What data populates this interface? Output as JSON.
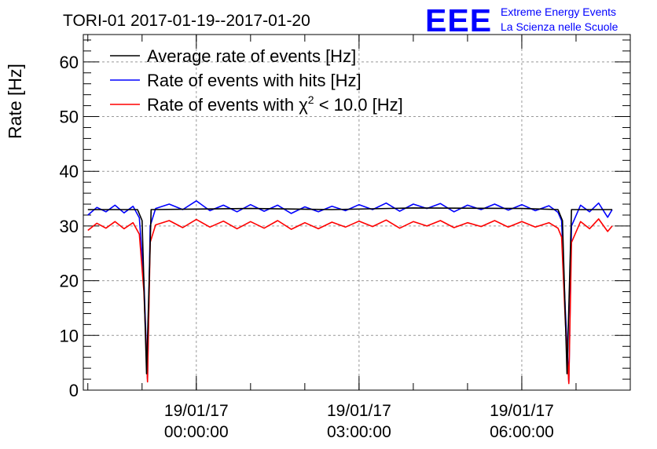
{
  "header": {
    "title": "TORI-01 2017-01-19--2017-01-20",
    "logo_text": "EEE",
    "logo_line1": "Extreme Energy Events",
    "logo_line2": "La Scienza nelle Scuole"
  },
  "colors": {
    "average": "#000000",
    "hits": "#0000ff",
    "chi2": "#ff0000",
    "logo": "#0000ff",
    "grid": "#999999"
  },
  "chart_data": {
    "type": "line",
    "title": "TORI-01 2017-01-19--2017-01-20",
    "ylabel": "Rate [Hz]",
    "xlabel": "",
    "ylim": [
      0,
      65
    ],
    "xlim": [
      "2017-01-18T21:55:00",
      "2017-01-19T08:00:00"
    ],
    "yticks": [
      0,
      10,
      20,
      30,
      40,
      50,
      60
    ],
    "xticks": [
      {
        "at": "2017-01-19T00:00:00",
        "date": "19/01/17",
        "time": "00:00:00"
      },
      {
        "at": "2017-01-19T03:00:00",
        "date": "19/01/17",
        "time": "03:00:00"
      },
      {
        "at": "2017-01-19T06:00:00",
        "date": "19/01/17",
        "time": "06:00:00"
      }
    ],
    "grid": true,
    "legend_position": "top-left",
    "series": [
      {
        "name": "Average rate of events [Hz]",
        "legend_main": "Average rate of events [Hz]",
        "color": "#000000",
        "points": [
          [
            "2017-01-18T22:00:00",
            33.0
          ],
          [
            "2017-01-18T22:55:00",
            33.0
          ],
          [
            "2017-01-18T23:00:00",
            31.0
          ],
          [
            "2017-01-18T23:05:00",
            3.0
          ],
          [
            "2017-01-18T23:10:00",
            33.0
          ],
          [
            "2017-01-19T01:00:00",
            33.2
          ],
          [
            "2017-01-19T02:30:00",
            33.0
          ],
          [
            "2017-01-19T04:00:00",
            33.3
          ],
          [
            "2017-01-19T06:00:00",
            33.2
          ],
          [
            "2017-01-19T06:40:00",
            33.0
          ],
          [
            "2017-01-19T06:45:00",
            31.0
          ],
          [
            "2017-01-19T06:50:00",
            3.0
          ],
          [
            "2017-01-19T06:55:00",
            33.0
          ],
          [
            "2017-01-19T07:40:00",
            33.0
          ]
        ]
      },
      {
        "name": "Rate of events with hits [Hz]",
        "legend_main": "Rate of events with hits [Hz]",
        "color": "#0000ff",
        "points": [
          [
            "2017-01-18T22:00:00",
            32.0
          ],
          [
            "2017-01-18T22:10:00",
            33.4
          ],
          [
            "2017-01-18T22:20:00",
            32.6
          ],
          [
            "2017-01-18T22:30:00",
            33.8
          ],
          [
            "2017-01-18T22:40:00",
            32.4
          ],
          [
            "2017-01-18T22:50:00",
            33.6
          ],
          [
            "2017-01-18T22:57:00",
            31.5
          ],
          [
            "2017-01-18T23:02:00",
            20.0
          ],
          [
            "2017-01-18T23:06:00",
            2.0
          ],
          [
            "2017-01-18T23:09:00",
            30.0
          ],
          [
            "2017-01-18T23:15:00",
            33.2
          ],
          [
            "2017-01-18T23:30:00",
            34.0
          ],
          [
            "2017-01-18T23:45:00",
            33.0
          ],
          [
            "2017-01-19T00:00:00",
            34.6
          ],
          [
            "2017-01-19T00:15:00",
            32.8
          ],
          [
            "2017-01-19T00:30:00",
            33.8
          ],
          [
            "2017-01-19T00:45:00",
            32.6
          ],
          [
            "2017-01-19T01:00:00",
            33.9
          ],
          [
            "2017-01-19T01:15:00",
            32.7
          ],
          [
            "2017-01-19T01:30:00",
            33.8
          ],
          [
            "2017-01-19T01:45:00",
            32.3
          ],
          [
            "2017-01-19T02:00:00",
            33.5
          ],
          [
            "2017-01-19T02:15:00",
            32.6
          ],
          [
            "2017-01-19T02:30:00",
            33.6
          ],
          [
            "2017-01-19T02:45:00",
            32.8
          ],
          [
            "2017-01-19T03:00:00",
            33.9
          ],
          [
            "2017-01-19T03:15:00",
            33.0
          ],
          [
            "2017-01-19T03:30:00",
            34.2
          ],
          [
            "2017-01-19T03:45:00",
            32.7
          ],
          [
            "2017-01-19T04:00:00",
            34.0
          ],
          [
            "2017-01-19T04:15:00",
            33.2
          ],
          [
            "2017-01-19T04:30:00",
            34.1
          ],
          [
            "2017-01-19T04:45:00",
            32.6
          ],
          [
            "2017-01-19T05:00:00",
            33.8
          ],
          [
            "2017-01-19T05:15:00",
            33.0
          ],
          [
            "2017-01-19T05:30:00",
            34.0
          ],
          [
            "2017-01-19T05:45:00",
            32.9
          ],
          [
            "2017-01-19T06:00:00",
            33.9
          ],
          [
            "2017-01-19T06:15:00",
            32.8
          ],
          [
            "2017-01-19T06:30:00",
            33.7
          ],
          [
            "2017-01-19T06:40:00",
            32.5
          ],
          [
            "2017-01-19T06:44:00",
            31.0
          ],
          [
            "2017-01-19T06:48:00",
            15.0
          ],
          [
            "2017-01-19T06:52:00",
            1.5
          ],
          [
            "2017-01-19T06:55:00",
            30.0
          ],
          [
            "2017-01-19T07:05:00",
            33.8
          ],
          [
            "2017-01-19T07:15:00",
            32.6
          ],
          [
            "2017-01-19T07:25:00",
            34.2
          ],
          [
            "2017-01-19T07:35:00",
            31.6
          ],
          [
            "2017-01-19T07:40:00",
            33.0
          ]
        ]
      },
      {
        "name": "Rate of events with χ2 < 10.0 [Hz]",
        "legend_main": "Rate of events with ",
        "legend_symbol": "χ",
        "legend_sup": "2",
        "legend_rest": " < 10.0 [Hz]",
        "color": "#ff0000",
        "points": [
          [
            "2017-01-18T22:00:00",
            29.2
          ],
          [
            "2017-01-18T22:10:00",
            30.5
          ],
          [
            "2017-01-18T22:20:00",
            29.6
          ],
          [
            "2017-01-18T22:30:00",
            30.8
          ],
          [
            "2017-01-18T22:40:00",
            29.5
          ],
          [
            "2017-01-18T22:50:00",
            30.6
          ],
          [
            "2017-01-18T22:57:00",
            28.5
          ],
          [
            "2017-01-18T23:02:00",
            18.0
          ],
          [
            "2017-01-18T23:06:00",
            1.5
          ],
          [
            "2017-01-18T23:09:00",
            27.0
          ],
          [
            "2017-01-18T23:15:00",
            30.2
          ],
          [
            "2017-01-18T23:30:00",
            31.0
          ],
          [
            "2017-01-18T23:45:00",
            29.7
          ],
          [
            "2017-01-19T00:00:00",
            31.2
          ],
          [
            "2017-01-19T00:15:00",
            29.8
          ],
          [
            "2017-01-19T00:30:00",
            30.9
          ],
          [
            "2017-01-19T00:45:00",
            29.5
          ],
          [
            "2017-01-19T01:00:00",
            30.8
          ],
          [
            "2017-01-19T01:15:00",
            29.6
          ],
          [
            "2017-01-19T01:30:00",
            31.0
          ],
          [
            "2017-01-19T01:45:00",
            29.4
          ],
          [
            "2017-01-19T02:00:00",
            30.6
          ],
          [
            "2017-01-19T02:15:00",
            29.5
          ],
          [
            "2017-01-19T02:30:00",
            30.7
          ],
          [
            "2017-01-19T02:45:00",
            29.8
          ],
          [
            "2017-01-19T03:00:00",
            30.9
          ],
          [
            "2017-01-19T03:15:00",
            29.9
          ],
          [
            "2017-01-19T03:30:00",
            31.1
          ],
          [
            "2017-01-19T03:45:00",
            29.6
          ],
          [
            "2017-01-19T04:00:00",
            30.8
          ],
          [
            "2017-01-19T04:15:00",
            30.0
          ],
          [
            "2017-01-19T04:30:00",
            31.0
          ],
          [
            "2017-01-19T04:45:00",
            29.7
          ],
          [
            "2017-01-19T05:00:00",
            30.6
          ],
          [
            "2017-01-19T05:15:00",
            29.9
          ],
          [
            "2017-01-19T05:30:00",
            31.0
          ],
          [
            "2017-01-19T05:45:00",
            29.8
          ],
          [
            "2017-01-19T06:00:00",
            30.8
          ],
          [
            "2017-01-19T06:15:00",
            29.8
          ],
          [
            "2017-01-19T06:30:00",
            30.6
          ],
          [
            "2017-01-19T06:40:00",
            29.6
          ],
          [
            "2017-01-19T06:44:00",
            28.0
          ],
          [
            "2017-01-19T06:48:00",
            13.0
          ],
          [
            "2017-01-19T06:52:00",
            1.2
          ],
          [
            "2017-01-19T06:55:00",
            27.0
          ],
          [
            "2017-01-19T07:05:00",
            30.8
          ],
          [
            "2017-01-19T07:15:00",
            29.5
          ],
          [
            "2017-01-19T07:25:00",
            31.3
          ],
          [
            "2017-01-19T07:35:00",
            29.0
          ],
          [
            "2017-01-19T07:40:00",
            30.0
          ]
        ]
      }
    ]
  }
}
